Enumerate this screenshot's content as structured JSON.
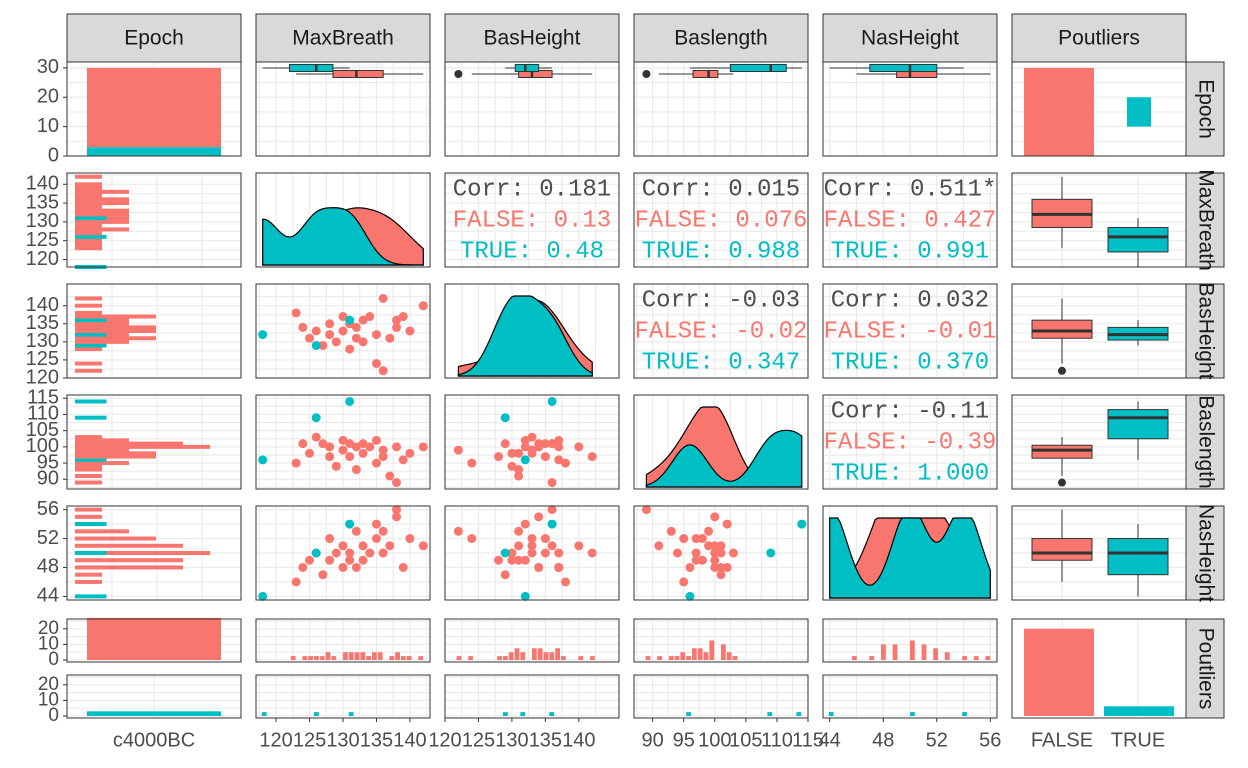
{
  "colors": {
    "false": "#F8766D",
    "true": "#00BFC4",
    "strip_fill": "#D9D9D9",
    "grid": "#EBEBEB",
    "corr_text": "#4D4D4D"
  },
  "chart_data": {
    "type": "scatter",
    "title": "",
    "variables": [
      "Epoch",
      "MaxBreath",
      "BasHeight",
      "Baslength",
      "NasHeight",
      "Poutliers"
    ],
    "column_strips": [
      "Epoch",
      "MaxBreath",
      "BasHeight",
      "Baslength",
      "NasHeight",
      "Poutliers"
    ],
    "row_strips": [
      "Epoch",
      "MaxBreath",
      "BasHeight",
      "Baslength",
      "NasHeight",
      "Poutliers"
    ],
    "groups": [
      "FALSE",
      "TRUE"
    ],
    "grid": true,
    "axes": {
      "Epoch": {
        "ticks": [
          "c4000BC"
        ]
      },
      "MaxBreath": {
        "range": [
          117,
          143
        ],
        "ticks": [
          120,
          125,
          130,
          135,
          140
        ],
        "tick_labels": [
          "120",
          "125",
          "130",
          "135",
          "140"
        ]
      },
      "BasHeight": {
        "range": [
          120,
          146
        ],
        "ticks": [
          120,
          125,
          130,
          135,
          140
        ],
        "tick_labels": [
          "120",
          "125",
          "130",
          "135",
          "140"
        ]
      },
      "Baslength": {
        "range": [
          87,
          115
        ],
        "ticks": [
          90,
          95,
          100,
          105,
          110,
          115
        ],
        "tick_labels": [
          "90",
          "95",
          "100",
          "105",
          "110",
          "115"
        ]
      },
      "NasHeight": {
        "range": [
          43.5,
          56.5
        ],
        "ticks": [
          44,
          48,
          52,
          56
        ],
        "tick_labels": [
          "44",
          "48",
          "52",
          "56"
        ]
      },
      "Poutliers": {
        "ticks": [
          "FALSE",
          "TRUE"
        ]
      }
    },
    "row_axis_ticks": {
      "Epoch": {
        "range": [
          0,
          32
        ],
        "ticks": [
          0,
          10,
          20,
          30
        ]
      },
      "MaxBreath": {
        "range": [
          118,
          143
        ],
        "ticks": [
          120,
          125,
          130,
          135,
          140
        ]
      },
      "BasHeight": {
        "range": [
          120,
          146
        ],
        "ticks": [
          120,
          125,
          130,
          135,
          140
        ]
      },
      "Baslength": {
        "range": [
          87,
          116
        ],
        "ticks": [
          90,
          95,
          100,
          105,
          110,
          115
        ]
      },
      "NasHeight": {
        "range": [
          43.5,
          56.5
        ],
        "ticks": [
          44,
          48,
          52,
          56
        ]
      },
      "Poutliers_top": {
        "range": [
          0,
          25
        ],
        "ticks": [
          0,
          10,
          20
        ]
      },
      "Poutliers_bottom": {
        "range": [
          0,
          25
        ],
        "ticks": [
          0,
          10,
          20
        ]
      }
    },
    "counts": {
      "FALSE": 27,
      "TRUE": 3
    },
    "correlations": {
      "MaxBreath|BasHeight": [
        "Corr: 0.181",
        "FALSE: 0.13",
        "TRUE: 0.48"
      ],
      "MaxBreath|Baslength": [
        "Corr: 0.015",
        "FALSE: 0.076",
        "TRUE: 0.988"
      ],
      "MaxBreath|NasHeight": [
        "Corr: 0.511*",
        "FALSE: 0.427",
        "TRUE: 0.991"
      ],
      "BasHeight|Baslength": [
        "Corr: -0.03",
        "FALSE: -0.02",
        "TRUE: 0.347"
      ],
      "BasHeight|NasHeight": [
        "Corr: 0.032",
        "FALSE: -0.01",
        "TRUE: 0.370"
      ],
      "Baslength|NasHeight": [
        "Corr: -0.11",
        "FALSE: -0.39",
        "TRUE: 1.000"
      ]
    },
    "points": [
      {
        "g": "FALSE",
        "MaxBreath": 123,
        "BasHeight": 138,
        "Baslength": 95,
        "NasHeight": 46
      },
      {
        "g": "FALSE",
        "MaxBreath": 124,
        "BasHeight": 134,
        "Baslength": 101,
        "NasHeight": 48
      },
      {
        "g": "FALSE",
        "MaxBreath": 125,
        "BasHeight": 131,
        "Baslength": 98,
        "NasHeight": 49
      },
      {
        "g": "FALSE",
        "MaxBreath": 126,
        "BasHeight": 133,
        "Baslength": 103,
        "NasHeight": 50
      },
      {
        "g": "FALSE",
        "MaxBreath": 127,
        "BasHeight": 129,
        "Baslength": 101,
        "NasHeight": 47
      },
      {
        "g": "FALSE",
        "MaxBreath": 128,
        "BasHeight": 135,
        "Baslength": 97,
        "NasHeight": 52
      },
      {
        "g": "FALSE",
        "MaxBreath": 128,
        "BasHeight": 132,
        "Baslength": 100,
        "NasHeight": 49
      },
      {
        "g": "FALSE",
        "MaxBreath": 129,
        "BasHeight": 130,
        "Baslength": 94,
        "NasHeight": 50
      },
      {
        "g": "FALSE",
        "MaxBreath": 130,
        "BasHeight": 137,
        "Baslength": 102,
        "NasHeight": 48
      },
      {
        "g": "FALSE",
        "MaxBreath": 130,
        "BasHeight": 133,
        "Baslength": 99,
        "NasHeight": 51
      },
      {
        "g": "FALSE",
        "MaxBreath": 131,
        "BasHeight": 135,
        "Baslength": 101,
        "NasHeight": 50
      },
      {
        "g": "FALSE",
        "MaxBreath": 131,
        "BasHeight": 128,
        "Baslength": 97,
        "NasHeight": 49
      },
      {
        "g": "FALSE",
        "MaxBreath": 132,
        "BasHeight": 134,
        "Baslength": 100,
        "NasHeight": 48
      },
      {
        "g": "FALSE",
        "MaxBreath": 132,
        "BasHeight": 131,
        "Baslength": 93,
        "NasHeight": 53
      },
      {
        "g": "FALSE",
        "MaxBreath": 133,
        "BasHeight": 136,
        "Baslength": 101,
        "NasHeight": 51
      },
      {
        "g": "FALSE",
        "MaxBreath": 133,
        "BasHeight": 130,
        "Baslength": 98,
        "NasHeight": 49
      },
      {
        "g": "FALSE",
        "MaxBreath": 134,
        "BasHeight": 137,
        "Baslength": 100,
        "NasHeight": 50
      },
      {
        "g": "FALSE",
        "MaxBreath": 135,
        "BasHeight": 124,
        "Baslength": 95,
        "NasHeight": 52
      },
      {
        "g": "FALSE",
        "MaxBreath": 135,
        "BasHeight": 132,
        "Baslength": 102,
        "NasHeight": 54
      },
      {
        "g": "FALSE",
        "MaxBreath": 136,
        "BasHeight": 142,
        "Baslength": 97,
        "NasHeight": 50
      },
      {
        "g": "FALSE",
        "MaxBreath": 136,
        "BasHeight": 122,
        "Baslength": 99,
        "NasHeight": 53
      },
      {
        "g": "FALSE",
        "MaxBreath": 137,
        "BasHeight": 131,
        "Baslength": 91,
        "NasHeight": 51
      },
      {
        "g": "FALSE",
        "MaxBreath": 138,
        "BasHeight": 136,
        "Baslength": 89,
        "NasHeight": 56
      },
      {
        "g": "FALSE",
        "MaxBreath": 138,
        "BasHeight": 134,
        "Baslength": 100,
        "NasHeight": 55
      },
      {
        "g": "FALSE",
        "MaxBreath": 139,
        "BasHeight": 137,
        "Baslength": 96,
        "NasHeight": 48
      },
      {
        "g": "FALSE",
        "MaxBreath": 140,
        "BasHeight": 133,
        "Baslength": 98,
        "NasHeight": 52
      },
      {
        "g": "FALSE",
        "MaxBreath": 142,
        "BasHeight": 140,
        "Baslength": 100,
        "NasHeight": 51
      },
      {
        "g": "TRUE",
        "MaxBreath": 118,
        "BasHeight": 132,
        "Baslength": 96,
        "NasHeight": 44
      },
      {
        "g": "TRUE",
        "MaxBreath": 126,
        "BasHeight": 129,
        "Baslength": 109,
        "NasHeight": 50
      },
      {
        "g": "TRUE",
        "MaxBreath": 131,
        "BasHeight": 136,
        "Baslength": 114,
        "NasHeight": 54
      }
    ]
  }
}
